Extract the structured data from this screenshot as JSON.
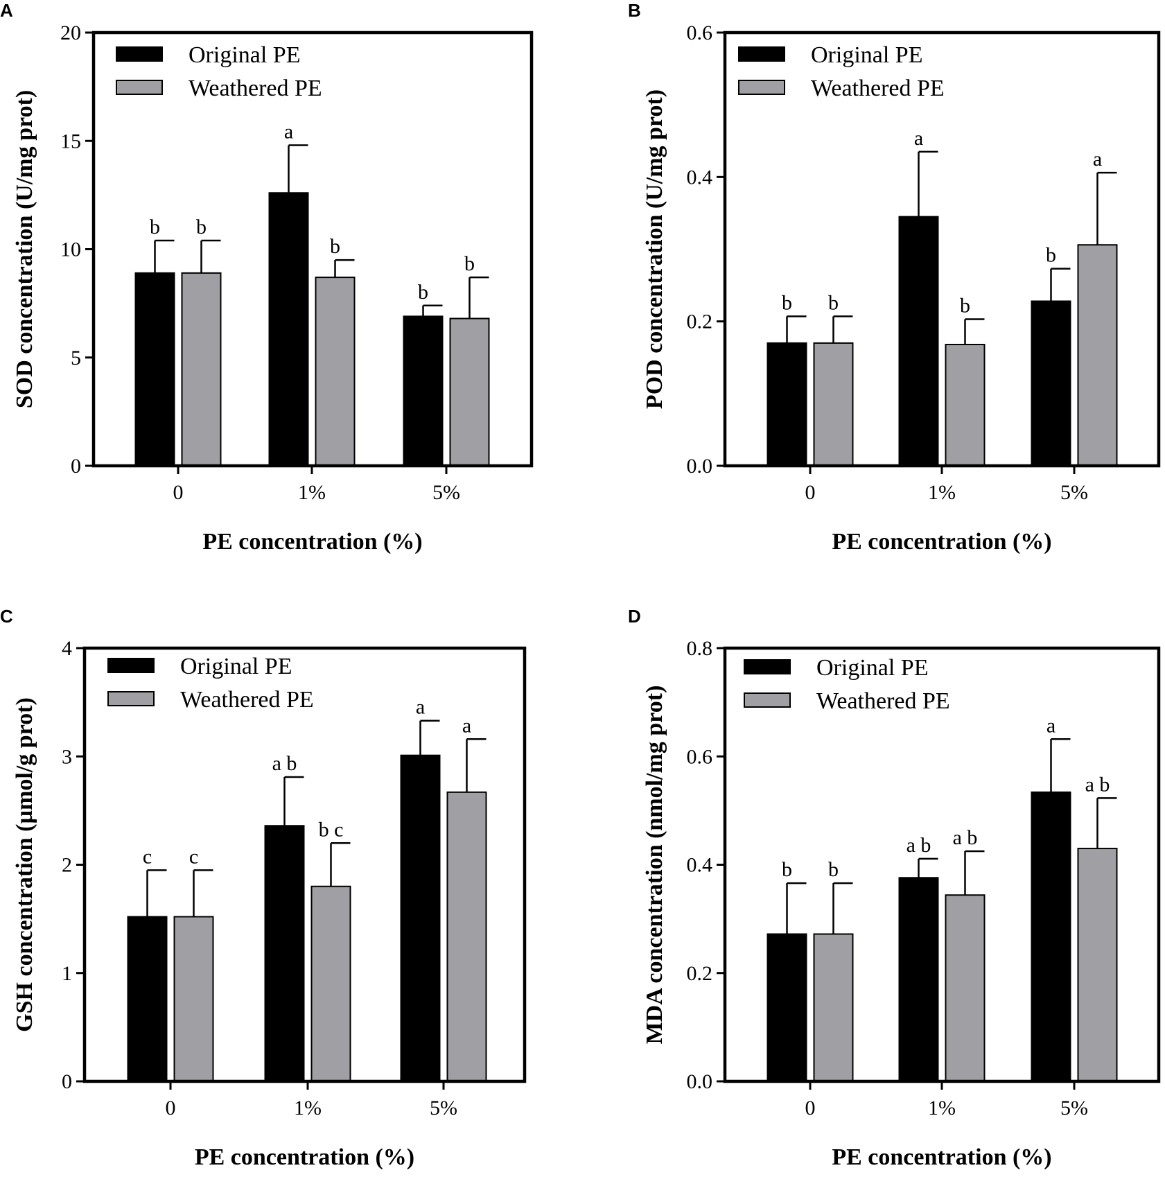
{
  "colors": {
    "original": "#000000",
    "weathered": "#a0a0a4",
    "axis": "#000000"
  },
  "chart_data": [
    {
      "panel": "A",
      "type": "bar",
      "categories": [
        "0",
        "1%",
        "5%"
      ],
      "series": [
        {
          "name": "Original PE",
          "values": [
            8.9,
            12.6,
            6.9
          ],
          "errors": [
            1.5,
            2.2,
            0.5
          ],
          "sig": [
            "b",
            "a",
            "b"
          ]
        },
        {
          "name": "Weathered PE",
          "values": [
            8.9,
            8.7,
            6.8
          ],
          "errors": [
            1.5,
            0.8,
            1.9
          ],
          "sig": [
            "b",
            "b",
            "b"
          ]
        }
      ],
      "xlabel": "PE concentration (%)",
      "ylabel": "SOD concentration (U/mg prot)",
      "ylim": [
        0,
        20
      ],
      "yticks": [
        0,
        5,
        10,
        15,
        20
      ],
      "yticklabels": [
        "0",
        "5",
        "10",
        "15",
        "20"
      ],
      "legend": "top-left"
    },
    {
      "panel": "B",
      "type": "bar",
      "categories": [
        "0",
        "1%",
        "5%"
      ],
      "series": [
        {
          "name": "Original PE",
          "values": [
            0.17,
            0.345,
            0.228
          ],
          "errors": [
            0.037,
            0.09,
            0.045
          ],
          "sig": [
            "b",
            "a",
            "b"
          ]
        },
        {
          "name": "Weathered PE",
          "values": [
            0.17,
            0.168,
            0.306
          ],
          "errors": [
            0.037,
            0.035,
            0.1
          ],
          "sig": [
            "b",
            "b",
            "a"
          ]
        }
      ],
      "xlabel": "PE concentration (%)",
      "ylabel": "POD concentration (U/mg prot)",
      "ylim": [
        0,
        0.6
      ],
      "yticks": [
        0,
        0.2,
        0.4,
        0.6
      ],
      "yticklabels": [
        "0.0",
        "0.2",
        "0.4",
        "0.6"
      ],
      "legend": "top-left"
    },
    {
      "panel": "C",
      "type": "bar",
      "categories": [
        "0",
        "1%",
        "5%"
      ],
      "series": [
        {
          "name": "Original PE",
          "values": [
            1.52,
            2.36,
            3.01
          ],
          "errors": [
            0.43,
            0.45,
            0.32
          ],
          "sig": [
            "c",
            "ab",
            "a"
          ]
        },
        {
          "name": "Weathered PE",
          "values": [
            1.52,
            1.8,
            2.67
          ],
          "errors": [
            0.43,
            0.4,
            0.49
          ],
          "sig": [
            "c",
            "bc",
            "a"
          ]
        }
      ],
      "xlabel": "PE concentration (%)",
      "ylabel": "GSH concentration (µmol/g prot)",
      "ylim": [
        0,
        4
      ],
      "yticks": [
        0,
        1,
        2,
        3,
        4
      ],
      "yticklabels": [
        "0",
        "1",
        "2",
        "3",
        "4"
      ],
      "legend": "top-left"
    },
    {
      "panel": "D",
      "type": "bar",
      "categories": [
        "0",
        "1%",
        "5%"
      ],
      "series": [
        {
          "name": "Original PE",
          "values": [
            0.272,
            0.376,
            0.534
          ],
          "errors": [
            0.094,
            0.035,
            0.098
          ],
          "sig": [
            "b",
            "ab",
            "a"
          ]
        },
        {
          "name": "Weathered PE",
          "values": [
            0.272,
            0.344,
            0.43
          ],
          "errors": [
            0.094,
            0.081,
            0.093
          ],
          "sig": [
            "b",
            "ab",
            "ab"
          ]
        }
      ],
      "xlabel": "PE concentration (%)",
      "ylabel": "MDA concentration (nmol/mg prot)",
      "ylim": [
        0,
        0.8
      ],
      "yticks": [
        0,
        0.2,
        0.4,
        0.6,
        0.8
      ],
      "yticklabels": [
        "0.0",
        "0.2",
        "0.4",
        "0.6",
        "0.8"
      ],
      "legend": "top-left"
    }
  ]
}
